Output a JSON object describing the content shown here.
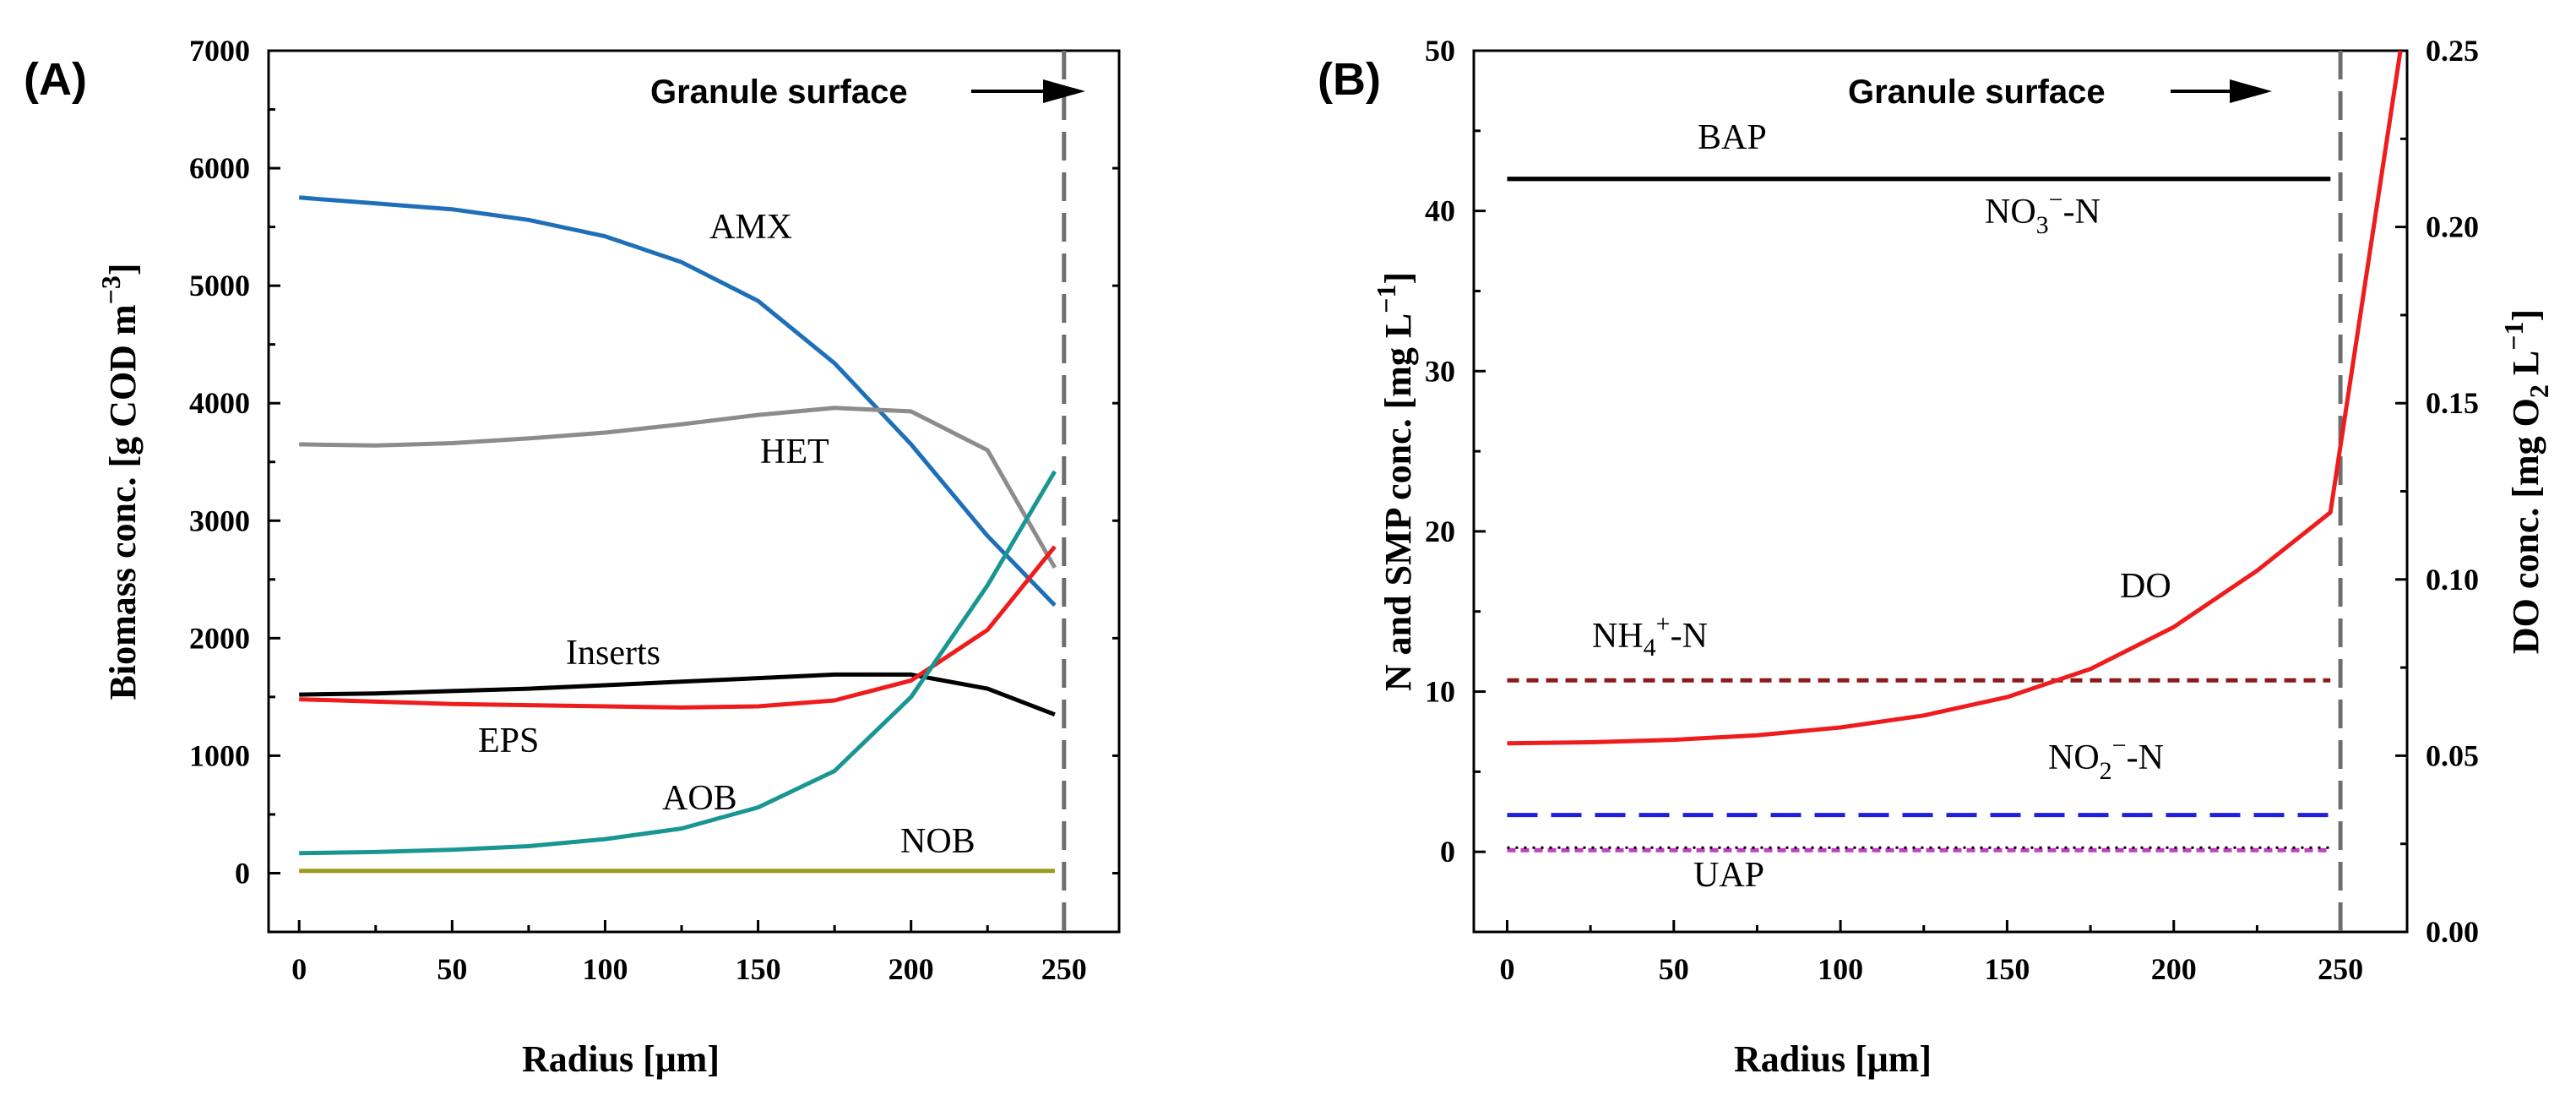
{
  "chart_data": [
    {
      "id": "A",
      "type": "line",
      "panel_label": "(A)",
      "xlabel": "Radius [μm]",
      "ylabel": "Biomass conc. [g COD m",
      "ylabel_sup": "−3",
      "ylabel_close": "]",
      "xlim": [
        -10,
        268
      ],
      "ylim": [
        -500,
        7000
      ],
      "x_ticks": [
        0,
        50,
        100,
        150,
        200,
        250
      ],
      "y_ticks": [
        0,
        1000,
        2000,
        3000,
        4000,
        5000,
        6000,
        7000
      ],
      "x_tick_labels": [
        "0",
        "50",
        "100",
        "150",
        "200",
        "250"
      ],
      "y_tick_labels": [
        "0",
        "1000",
        "2000",
        "3000",
        "4000",
        "5000",
        "6000",
        "7000"
      ],
      "annotation": {
        "text": "Granule surface",
        "x": 250
      },
      "series": [
        {
          "name": "AMX",
          "label": "AMX",
          "color": "#1f6fb8",
          "dash": "",
          "x": [
            0,
            25,
            50,
            75,
            100,
            125,
            150,
            175,
            200,
            225,
            247
          ],
          "y": [
            5750,
            5700,
            5650,
            5560,
            5420,
            5200,
            4870,
            4340,
            3650,
            2870,
            2280
          ]
        },
        {
          "name": "HET",
          "label": "HET",
          "color": "#8c8c8c",
          "dash": "",
          "x": [
            0,
            25,
            50,
            75,
            100,
            125,
            150,
            175,
            200,
            225,
            247
          ],
          "y": [
            3650,
            3640,
            3660,
            3700,
            3750,
            3820,
            3900,
            3960,
            3930,
            3600,
            2600
          ]
        },
        {
          "name": "Inserts",
          "label": "Inserts",
          "color": "#000000",
          "dash": "",
          "x": [
            0,
            25,
            50,
            75,
            100,
            125,
            150,
            175,
            200,
            225,
            247
          ],
          "y": [
            1520,
            1530,
            1550,
            1570,
            1600,
            1630,
            1660,
            1690,
            1690,
            1570,
            1350
          ]
        },
        {
          "name": "EPS",
          "label": "EPS",
          "color": "#ee1c1c",
          "dash": "",
          "x": [
            0,
            25,
            50,
            75,
            100,
            125,
            150,
            175,
            200,
            225,
            247
          ],
          "y": [
            1480,
            1460,
            1440,
            1430,
            1420,
            1410,
            1420,
            1470,
            1640,
            2070,
            2780
          ]
        },
        {
          "name": "AOB",
          "label": "AOB",
          "color": "#1a9692",
          "dash": "",
          "x": [
            0,
            25,
            50,
            75,
            100,
            125,
            150,
            175,
            200,
            225,
            247
          ],
          "y": [
            170,
            180,
            200,
            230,
            290,
            380,
            560,
            870,
            1500,
            2450,
            3420
          ]
        },
        {
          "name": "NOB",
          "label": "NOB",
          "color": "#9a9a1e",
          "dash": "",
          "x": [
            0,
            247
          ],
          "y": [
            20,
            20
          ]
        }
      ]
    },
    {
      "id": "B",
      "type": "line",
      "panel_label": "(B)",
      "xlabel": "Radius [μm]",
      "ylabel": "N and SMP conc. [mg L",
      "ylabel_sup": "−1",
      "ylabel_close": "]",
      "y2label": "DO conc. [mg O",
      "y2label_sub": "2",
      "y2label_mid": " L",
      "y2label_sup": "−1",
      "y2label_close": "]",
      "xlim": [
        -10,
        270
      ],
      "ylim": [
        -5,
        50
      ],
      "y2lim": [
        0,
        0.25
      ],
      "x_ticks": [
        0,
        50,
        100,
        150,
        200,
        250
      ],
      "y_ticks": [
        0,
        10,
        20,
        30,
        40,
        50
      ],
      "y2_ticks": [
        0,
        0.05,
        0.1,
        0.15,
        0.2,
        0.25
      ],
      "x_tick_labels": [
        "0",
        "50",
        "100",
        "150",
        "200",
        "250"
      ],
      "y_tick_labels": [
        "0",
        "10",
        "20",
        "30",
        "40",
        "50"
      ],
      "y2_tick_labels": [
        "0.00",
        "0.05",
        "0.10",
        "0.15",
        "0.20",
        "0.25"
      ],
      "annotation": {
        "text": "Granule surface",
        "x": 250
      },
      "series": [
        {
          "name": "BAP",
          "label": "BAP",
          "color": "#000000",
          "dash": "",
          "axis": "left",
          "x": [
            0,
            247
          ],
          "y": [
            42,
            42
          ]
        },
        {
          "name": "NO3-N",
          "label": "NO",
          "label_sub": "3",
          "label_sup": "−",
          "label_tail": "-N",
          "color": "#000000",
          "dash": "",
          "axis": "left",
          "x": [
            0,
            247
          ],
          "y": [
            42,
            42
          ]
        },
        {
          "name": "NH4-N",
          "label": "NH",
          "label_sub": "4",
          "label_sup": "+",
          "label_tail": "-N",
          "color": "#8b1a1a",
          "dash": "14,9",
          "axis": "left",
          "x": [
            0,
            247
          ],
          "y": [
            10.7,
            10.7
          ]
        },
        {
          "name": "NO2-N",
          "label": "NO",
          "label_sub": "2",
          "label_sup": "−",
          "label_tail": "-N",
          "color": "#1f1fe0",
          "dash": "36,16",
          "axis": "left",
          "x": [
            0,
            247
          ],
          "y": [
            2.3,
            2.3
          ]
        },
        {
          "name": "UAP",
          "label": "UAP",
          "color": "#c040c0",
          "dash": "10,6",
          "axis": "left",
          "x": [
            0,
            247
          ],
          "y": [
            0.1,
            0.1
          ]
        },
        {
          "name": "DO",
          "label": "DO",
          "color": "#ee1c1c",
          "dash": "",
          "axis": "right",
          "x": [
            0,
            25,
            50,
            75,
            100,
            125,
            150,
            175,
            200,
            225,
            247,
            268
          ],
          "y": [
            0.0535,
            0.0538,
            0.0545,
            0.0558,
            0.058,
            0.0614,
            0.0666,
            0.0746,
            0.0865,
            0.1025,
            0.119,
            0.25
          ]
        }
      ]
    }
  ]
}
